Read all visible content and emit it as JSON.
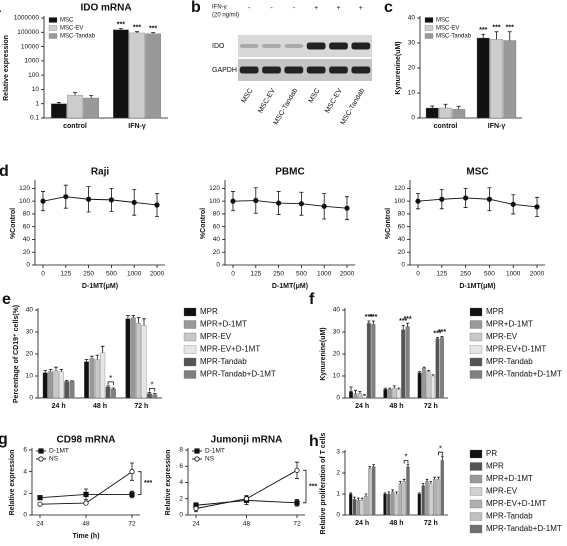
{
  "chart_data": [
    {
      "type": "bar",
      "panel": "a",
      "title": "IDO mRNA",
      "ylabel": "Relative expression",
      "ylog": true,
      "categories": [
        "control",
        "IFN-γ"
      ],
      "ylim": [
        0.1,
        1000000
      ],
      "yticks": [
        0.1,
        1,
        10,
        100,
        1000,
        10000,
        100000,
        1000000
      ],
      "legend": "inside-top-left",
      "series": [
        {
          "name": "MSC",
          "color": "#111111",
          "values": [
            1,
            150000
          ],
          "errors": [
            0.2,
            30000
          ]
        },
        {
          "name": "MSC-EV",
          "color": "#cccccc",
          "values": [
            4,
            90000
          ],
          "errors": [
            2,
            20000
          ]
        },
        {
          "name": "MSC-Tandab",
          "color": "#999999",
          "values": [
            2.5,
            80000
          ],
          "errors": [
            1.2,
            15000
          ]
        }
      ],
      "annotations": [
        {
          "text": "***",
          "category": 1,
          "series": 0
        },
        {
          "text": "***",
          "category": 1,
          "series": 1
        },
        {
          "text": "***",
          "category": 1,
          "series": 2
        }
      ]
    },
    {
      "type": "blot",
      "panel": "b",
      "treatment_label": [
        "IFN-γ",
        "(20 ng/ml)"
      ],
      "treatment": [
        "-",
        "-",
        "-",
        "+",
        "+",
        "+"
      ],
      "rows": [
        "IDO",
        "GAPDH"
      ],
      "lanes": [
        "MSC",
        "MSC-EV",
        "MSC-Tandab",
        "MSC",
        "MSC-EV",
        "MSC-Tandab"
      ]
    },
    {
      "type": "bar",
      "panel": "c",
      "ylabel": "Kynurenine(uM)",
      "categories": [
        "control",
        "IFN-γ"
      ],
      "ylim": [
        0,
        40
      ],
      "yticks": [
        0,
        10,
        20,
        30,
        40
      ],
      "legend": "inside-top-left",
      "series": [
        {
          "name": "MSC",
          "color": "#111111",
          "values": [
            4,
            32
          ],
          "errors": [
            0.8,
            1.5
          ]
        },
        {
          "name": "MSC-EV",
          "color": "#cccccc",
          "values": [
            4,
            31.5
          ],
          "errors": [
            1.5,
            3
          ]
        },
        {
          "name": "MSC-Tandab",
          "color": "#999999",
          "values": [
            3.5,
            31
          ],
          "errors": [
            1.2,
            3.5
          ]
        }
      ],
      "annotations": [
        {
          "text": "***",
          "category": 1,
          "series": 0
        },
        {
          "text": "***",
          "category": 1,
          "series": 1
        },
        {
          "text": "***",
          "category": 1,
          "series": 2
        }
      ]
    },
    {
      "type": "line",
      "panel": "d",
      "title": "Raji",
      "ylabel": "%Control",
      "xlabel": "D-1MT(μM)",
      "categories": [
        "0",
        "125",
        "250",
        "500",
        "1000",
        "2000"
      ],
      "ylim": [
        0,
        130
      ],
      "yticks": [
        0,
        20,
        40,
        60,
        80,
        100,
        120
      ],
      "series": [
        {
          "color": "#111111",
          "marker": "circle",
          "filled": true,
          "values": [
            100,
            107,
            103,
            102,
            98,
            94
          ],
          "errors": [
            15,
            18,
            20,
            18,
            20,
            18
          ]
        }
      ]
    },
    {
      "type": "line",
      "title": "PBMC",
      "ylabel": "%Control",
      "xlabel": "D-1MT(μM)",
      "categories": [
        "0",
        "125",
        "250",
        "500",
        "1000",
        "2000"
      ],
      "ylim": [
        0,
        130
      ],
      "yticks": [
        0,
        20,
        40,
        60,
        80,
        100,
        120
      ],
      "series": [
        {
          "color": "#111111",
          "marker": "circle",
          "filled": true,
          "values": [
            100,
            101,
            97,
            96,
            92,
            89
          ],
          "errors": [
            15,
            20,
            18,
            18,
            20,
            18
          ]
        }
      ]
    },
    {
      "type": "line",
      "title": "MSC",
      "ylabel": "%Control",
      "xlabel": "D-1MT(μM)",
      "categories": [
        "0",
        "125",
        "250",
        "500",
        "1000",
        "2000"
      ],
      "ylim": [
        0,
        130
      ],
      "yticks": [
        0,
        20,
        40,
        60,
        80,
        100,
        120
      ],
      "series": [
        {
          "color": "#111111",
          "marker": "circle",
          "filled": true,
          "values": [
            100,
            103,
            105,
            103,
            95,
            91
          ],
          "errors": [
            12,
            15,
            15,
            18,
            15,
            15
          ]
        }
      ]
    },
    {
      "type": "bar",
      "panel": "e",
      "ylabel": "Percentage of CD19⁺ cells(%)",
      "categories": [
        "24 h",
        "48 h",
        "72 h"
      ],
      "ylim": [
        0,
        40
      ],
      "yticks": [
        0,
        10,
        20,
        30,
        40
      ],
      "legend": "right",
      "series": [
        {
          "name": "MPR",
          "color": "#111111",
          "values": [
            11.5,
            16.5,
            36
          ],
          "errors": [
            1,
            1,
            1.5
          ]
        },
        {
          "name": "MPR+D-1MT",
          "color": "#999999",
          "values": [
            12,
            18,
            36.5
          ],
          "errors": [
            1,
            1,
            1
          ]
        },
        {
          "name": "MPR-EV",
          "color": "#c8c8c8",
          "values": [
            12.5,
            17.5,
            34
          ],
          "errors": [
            1.5,
            2,
            2.5
          ]
        },
        {
          "name": "MPR-EV+D-1MT",
          "color": "#e6e6e6",
          "values": [
            12,
            20.5,
            33
          ],
          "errors": [
            1,
            3,
            3
          ]
        },
        {
          "name": "MPR-Tandab",
          "color": "#555555",
          "values": [
            7.5,
            5,
            2
          ],
          "errors": [
            0.5,
            0.5,
            0.5
          ]
        },
        {
          "name": "MPR-Tandab+D-1MT",
          "color": "#808080",
          "values": [
            7.5,
            4,
            1.5
          ],
          "errors": [
            0.3,
            0.5,
            0.5
          ]
        }
      ],
      "annotations": [
        {
          "text": "*",
          "category": 1,
          "series": [
            4,
            5
          ]
        },
        {
          "text": "*",
          "category": 2,
          "series": [
            4,
            5
          ]
        }
      ]
    },
    {
      "type": "bar",
      "panel": "f",
      "ylabel": "Kynurenine(uM)",
      "categories": [
        "24 h",
        "48 h",
        "72 h"
      ],
      "ylim": [
        0,
        40
      ],
      "yticks": [
        0,
        10,
        20,
        30,
        40
      ],
      "legend": "right",
      "series": [
        {
          "name": "MPR",
          "color": "#111111",
          "values": [
            3,
            4,
            11.5
          ],
          "errors": [
            2,
            0.5,
            0.5
          ]
        },
        {
          "name": "MPR+D-1MT",
          "color": "#999999",
          "values": [
            2,
            4,
            13.5
          ],
          "errors": [
            1.5,
            0.5,
            0.5
          ]
        },
        {
          "name": "MPR-EV",
          "color": "#c8c8c8",
          "values": [
            2,
            4.5,
            12
          ],
          "errors": [
            1,
            1,
            0.5
          ]
        },
        {
          "name": "MPR-EV+D-1MT",
          "color": "#e6e6e6",
          "values": [
            1,
            4,
            10
          ],
          "errors": [
            0.5,
            0.5,
            0.5
          ]
        },
        {
          "name": "MPR-Tandab",
          "color": "#555555",
          "values": [
            34,
            31,
            27
          ],
          "errors": [
            1,
            2,
            0.5
          ]
        },
        {
          "name": "MPR-Tandab+D-1MT",
          "color": "#808080",
          "values": [
            33.5,
            32.5,
            27.5
          ],
          "errors": [
            1.5,
            1.5,
            0.5
          ]
        }
      ],
      "annotations": [
        {
          "text": "***",
          "category": 0,
          "series": 4
        },
        {
          "text": "***",
          "category": 0,
          "series": 5
        },
        {
          "text": "***",
          "category": 1,
          "series": 4
        },
        {
          "text": "***",
          "category": 1,
          "series": 5
        },
        {
          "text": "***",
          "category": 2,
          "series": 4
        },
        {
          "text": "***",
          "category": 2,
          "series": 5
        }
      ]
    },
    {
      "type": "line",
      "panel": "g",
      "title": "CD98 mRNA",
      "ylabel": "Relative expression",
      "xlabel": "Time (h)",
      "legend": "inside-top-left",
      "categories": [
        "24",
        "48",
        "72"
      ],
      "ylim": [
        0,
        6
      ],
      "yticks": [
        0,
        2,
        4,
        6
      ],
      "series": [
        {
          "name": "D-1MT",
          "color": "#111111",
          "marker": "square",
          "filled": true,
          "values": [
            1.6,
            1.9,
            1.9
          ],
          "errors": [
            0.1,
            0.5,
            0.3
          ]
        },
        {
          "name": "NS",
          "color": "#111111",
          "marker": "circle",
          "filled": false,
          "values": [
            1,
            1.1,
            4
          ],
          "errors": [
            0.1,
            0.1,
            0.8
          ]
        }
      ],
      "annotations": [
        {
          "text": "***",
          "category": 2
        }
      ]
    },
    {
      "type": "line",
      "title": "Jumonji mRNA",
      "ylabel": "Relative expression",
      "legend": "inside-top-left",
      "categories": [
        "24",
        "48",
        "72"
      ],
      "ylim": [
        0,
        8
      ],
      "yticks": [
        0,
        2,
        4,
        6,
        8
      ],
      "series": [
        {
          "name": "D-1MT",
          "color": "#111111",
          "marker": "square",
          "filled": true,
          "values": [
            1.2,
            1.8,
            1.5
          ],
          "errors": [
            0.3,
            0.5,
            0.4
          ]
        },
        {
          "name": "NS",
          "color": "#111111",
          "marker": "circle",
          "filled": false,
          "values": [
            0.8,
            2,
            5.5
          ],
          "errors": [
            0.4,
            0.4,
            1
          ]
        }
      ],
      "annotations": [
        {
          "text": "***",
          "category": 2
        }
      ]
    },
    {
      "type": "bar",
      "panel": "h",
      "ylabel": "Relative proliferation of T cells",
      "categories": [
        "24 h",
        "48 h",
        "72 h"
      ],
      "ylim": [
        0,
        3
      ],
      "yticks": [
        0,
        1,
        2,
        3
      ],
      "legend": "right",
      "series": [
        {
          "name": "PR",
          "color": "#111111",
          "values": [
            1,
            1,
            1
          ],
          "errors": [
            0.05,
            0.05,
            0.05
          ]
        },
        {
          "name": "MPR",
          "color": "#555555",
          "values": [
            0.75,
            1,
            1.4
          ],
          "errors": [
            0.1,
            0.1,
            0.1
          ]
        },
        {
          "name": "MPR+D-1MT",
          "color": "#999999",
          "values": [
            0.7,
            1.1,
            1.6
          ],
          "errors": [
            0.1,
            0.1,
            0.1
          ]
        },
        {
          "name": "MPR-EV",
          "color": "#d0d0d0",
          "values": [
            0.7,
            1,
            1.5
          ],
          "errors": [
            0.1,
            0.1,
            0.1
          ]
        },
        {
          "name": "MPR-EV+D-1MT",
          "color": "#b0b0b0",
          "values": [
            0.9,
            1.5,
            1.7
          ],
          "errors": [
            0.1,
            0.1,
            0.1
          ]
        },
        {
          "name": "MPR-Tandab",
          "color": "#c0c0c0",
          "values": [
            2.2,
            1.6,
            1.7
          ],
          "errors": [
            0.1,
            0.1,
            0.1
          ]
        },
        {
          "name": "MPR-Tandab+D-1MT",
          "color": "#707070",
          "values": [
            2.3,
            2.3,
            2.6
          ],
          "errors": [
            0.1,
            0.1,
            0.2
          ]
        }
      ],
      "annotations": [
        {
          "text": "*",
          "category": 1,
          "series": [
            5,
            6
          ]
        },
        {
          "text": "*",
          "category": 2,
          "series": [
            5,
            6
          ]
        }
      ]
    }
  ]
}
